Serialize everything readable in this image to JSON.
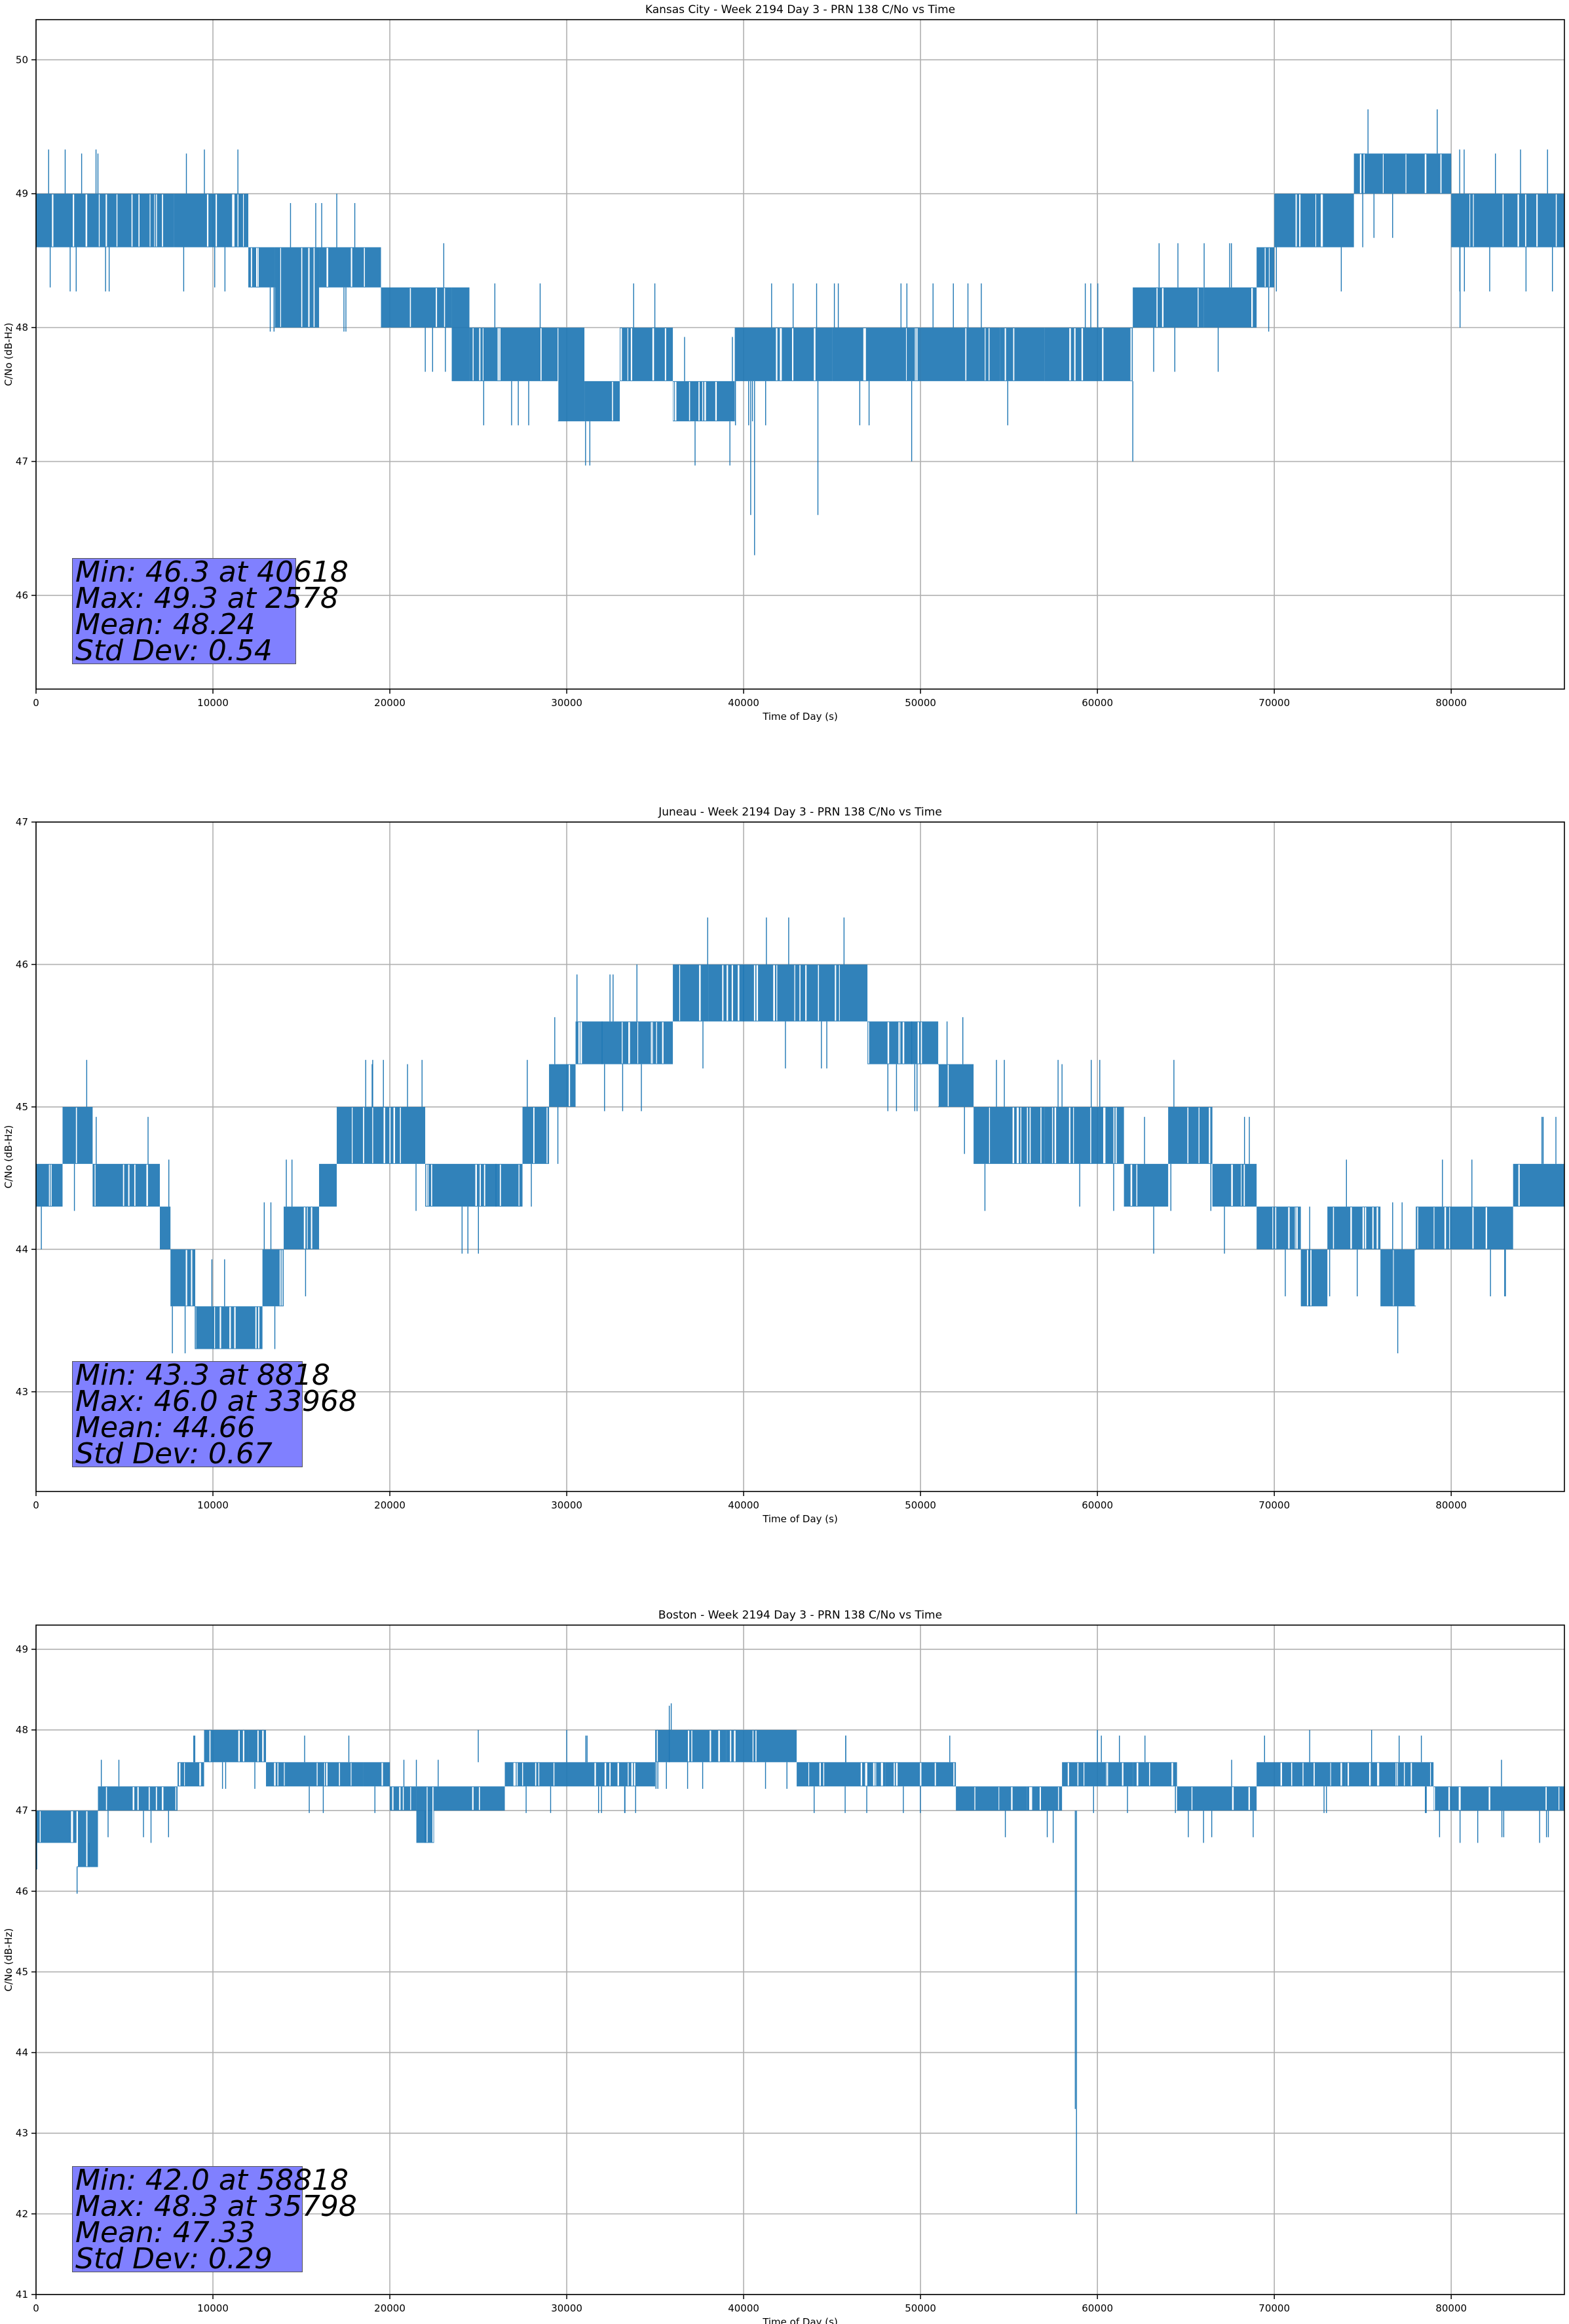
{
  "chart_data": [
    {
      "type": "line",
      "title": "Kansas City - Week 2194 Day 3 - PRN 138 C/No vs Time",
      "xlabel": "Time of Day (s)",
      "ylabel": "C/No (dB-Hz)",
      "xlim": [
        0,
        86400
      ],
      "ylim": [
        45.3,
        50.3
      ],
      "xticks": [
        0,
        10000,
        20000,
        30000,
        40000,
        50000,
        60000,
        70000,
        80000
      ],
      "yticks": [
        46,
        47,
        48,
        49,
        50
      ],
      "grid": true,
      "color": "#1f77b4",
      "stats": {
        "min": "Min: 46.3 at 40618",
        "max": "Max: 49.3 at 2578",
        "mean": "Mean: 48.24",
        "std": "Std Dev: 0.54"
      },
      "bands": [
        [
          0,
          4500,
          48.6,
          49.0
        ],
        [
          4500,
          7800,
          48.6,
          49.0
        ],
        [
          7800,
          12000,
          48.6,
          49.0
        ],
        [
          12000,
          13500,
          48.3,
          48.6
        ],
        [
          13500,
          16000,
          48.0,
          48.6
        ],
        [
          16000,
          19500,
          48.3,
          48.6
        ],
        [
          19500,
          23500,
          48.0,
          48.3
        ],
        [
          23500,
          24500,
          47.6,
          48.3
        ],
        [
          24500,
          29500,
          47.6,
          48.0
        ],
        [
          29500,
          31000,
          47.3,
          48.0
        ],
        [
          31000,
          33000,
          47.3,
          47.6
        ],
        [
          33000,
          36000,
          47.6,
          48.0
        ],
        [
          36000,
          39500,
          47.3,
          47.6
        ],
        [
          39500,
          45000,
          47.6,
          48.0
        ],
        [
          45000,
          50000,
          47.6,
          48.0
        ],
        [
          50000,
          54500,
          47.6,
          48.0
        ],
        [
          54500,
          57000,
          47.6,
          48.0
        ],
        [
          57000,
          62000,
          47.6,
          48.0
        ],
        [
          62000,
          66000,
          48.0,
          48.3
        ],
        [
          66000,
          69000,
          48.0,
          48.3
        ],
        [
          69000,
          70000,
          48.3,
          48.6
        ],
        [
          70000,
          74500,
          48.6,
          49.0
        ],
        [
          74500,
          80000,
          49.0,
          49.3
        ],
        [
          80000,
          86400,
          48.6,
          49.0
        ]
      ],
      "spikes": [
        [
          40618,
          46.3,
          47.6
        ],
        [
          40400,
          46.6,
          47.6
        ],
        [
          44200,
          46.6,
          47.6
        ],
        [
          49500,
          47.0,
          47.6
        ],
        [
          62000,
          47.0,
          47.6
        ],
        [
          800,
          48.3,
          48.6
        ],
        [
          2578,
          49.0,
          49.3
        ],
        [
          3500,
          49.0,
          49.3
        ],
        [
          8500,
          49.0,
          49.3
        ],
        [
          10100,
          48.3,
          48.6
        ],
        [
          17000,
          48.6,
          49.0
        ],
        [
          40500,
          47.3,
          47.6
        ],
        [
          80500,
          48.0,
          48.6
        ],
        [
          75000,
          48.6,
          49.3
        ],
        [
          82500,
          49.0,
          49.3
        ]
      ]
    },
    {
      "type": "line",
      "title": "Juneau - Week 2194 Day 3 - PRN 138 C/No vs Time",
      "xlabel": "Time of Day (s)",
      "ylabel": "C/No (dB-Hz)",
      "xlim": [
        0,
        86400
      ],
      "ylim": [
        42.3,
        47.0
      ],
      "xticks": [
        0,
        10000,
        20000,
        30000,
        40000,
        50000,
        60000,
        70000,
        80000
      ],
      "yticks": [
        43,
        44,
        45,
        46,
        47
      ],
      "grid": true,
      "color": "#1f77b4",
      "stats": {
        "min": "Min: 43.3 at 8818",
        "max": "Max: 46.0 at 33968",
        "mean": "Mean: 44.66",
        "std": "Std Dev: 0.67"
      },
      "bands": [
        [
          0,
          1500,
          44.3,
          44.6
        ],
        [
          1500,
          3200,
          44.6,
          45.0
        ],
        [
          3200,
          7000,
          44.3,
          44.6
        ],
        [
          7000,
          7600,
          44.0,
          44.3
        ],
        [
          7600,
          9000,
          43.6,
          44.0
        ],
        [
          9000,
          12800,
          43.3,
          43.6
        ],
        [
          12800,
          14000,
          43.6,
          44.0
        ],
        [
          14000,
          16000,
          44.0,
          44.3
        ],
        [
          16000,
          17000,
          44.3,
          44.6
        ],
        [
          17000,
          22000,
          44.6,
          45.0
        ],
        [
          22000,
          25000,
          44.3,
          44.6
        ],
        [
          25000,
          27500,
          44.3,
          44.6
        ],
        [
          27500,
          29000,
          44.6,
          45.0
        ],
        [
          29000,
          30500,
          45.0,
          45.3
        ],
        [
          30500,
          36000,
          45.3,
          45.6
        ],
        [
          36000,
          38000,
          45.6,
          46.0
        ],
        [
          38000,
          47000,
          45.6,
          46.0
        ],
        [
          47000,
          51000,
          45.3,
          45.6
        ],
        [
          51000,
          53000,
          45.0,
          45.3
        ],
        [
          53000,
          57000,
          44.6,
          45.0
        ],
        [
          57000,
          61500,
          44.6,
          45.0
        ],
        [
          61500,
          64000,
          44.3,
          44.6
        ],
        [
          64000,
          66500,
          44.6,
          45.0
        ],
        [
          66500,
          69000,
          44.3,
          44.6
        ],
        [
          69000,
          71500,
          44.0,
          44.3
        ],
        [
          71500,
          73000,
          43.6,
          44.0
        ],
        [
          73000,
          76000,
          44.0,
          44.3
        ],
        [
          76000,
          78000,
          43.6,
          44.0
        ],
        [
          78000,
          83500,
          44.0,
          44.3
        ],
        [
          83500,
          86400,
          44.3,
          44.6
        ]
      ],
      "spikes": [
        [
          300,
          44.0,
          44.3
        ],
        [
          9000,
          43.3,
          43.6
        ],
        [
          33968,
          45.6,
          46.0
        ],
        [
          13500,
          43.3,
          43.6
        ],
        [
          19000,
          45.0,
          45.3
        ],
        [
          21000,
          45.0,
          45.3
        ],
        [
          29500,
          44.6,
          45.0
        ],
        [
          32000,
          45.3,
          45.6
        ],
        [
          40000,
          45.6,
          46.0
        ],
        [
          49500,
          45.3,
          45.6
        ],
        [
          51500,
          45.3,
          45.6
        ],
        [
          58000,
          45.0,
          45.3
        ],
        [
          59000,
          44.3,
          44.6
        ],
        [
          72000,
          43.6,
          44.3
        ],
        [
          28000,
          44.3,
          44.6
        ],
        [
          26000,
          44.3,
          44.6
        ]
      ]
    },
    {
      "type": "line",
      "title": "Boston - Week 2194 Day 3 - PRN 138 C/No vs Time",
      "xlabel": "Time of Day (s)",
      "ylabel": "C/No (dB-Hz)",
      "xlim": [
        0,
        86400
      ],
      "ylim": [
        41.0,
        49.3
      ],
      "xticks": [
        0,
        10000,
        20000,
        30000,
        40000,
        50000,
        60000,
        70000,
        80000
      ],
      "yticks": [
        41,
        42,
        43,
        44,
        45,
        46,
        47,
        48,
        49
      ],
      "grid": true,
      "color": "#1f77b4",
      "stats": {
        "min": "Min: 42.0 at 58818",
        "max": "Max: 48.3 at 35798",
        "mean": "Mean: 47.33",
        "std": "Std Dev: 0.29"
      },
      "bands": [
        [
          0,
          2300,
          46.6,
          47.0
        ],
        [
          2300,
          3500,
          46.3,
          47.0
        ],
        [
          3500,
          8000,
          47.0,
          47.3
        ],
        [
          8000,
          9500,
          47.3,
          47.6
        ],
        [
          9500,
          12000,
          47.6,
          48.0
        ],
        [
          12000,
          13000,
          47.6,
          48.0
        ],
        [
          13000,
          18500,
          47.3,
          47.6
        ],
        [
          18500,
          20000,
          47.3,
          47.6
        ],
        [
          20000,
          21500,
          47.0,
          47.3
        ],
        [
          21500,
          22500,
          46.6,
          47.3
        ],
        [
          22500,
          26500,
          47.0,
          47.3
        ],
        [
          26500,
          35000,
          47.3,
          47.6
        ],
        [
          35000,
          39000,
          47.6,
          48.0
        ],
        [
          39000,
          43000,
          47.6,
          48.0
        ],
        [
          43000,
          48000,
          47.3,
          47.6
        ],
        [
          48000,
          52000,
          47.3,
          47.6
        ],
        [
          52000,
          56000,
          47.0,
          47.3
        ],
        [
          56000,
          58000,
          47.0,
          47.3
        ],
        [
          58000,
          62000,
          47.3,
          47.6
        ],
        [
          62000,
          64500,
          47.3,
          47.6
        ],
        [
          64500,
          69000,
          47.0,
          47.3
        ],
        [
          69000,
          74000,
          47.3,
          47.6
        ],
        [
          74000,
          79000,
          47.3,
          47.6
        ],
        [
          79000,
          86400,
          47.0,
          47.3
        ]
      ],
      "spikes": [
        [
          58818,
          42.0,
          47.0
        ],
        [
          58750,
          43.3,
          47.0
        ],
        [
          35798,
          47.6,
          48.3
        ],
        [
          3000,
          46.3,
          46.6
        ],
        [
          57500,
          46.6,
          47.0
        ],
        [
          66000,
          46.6,
          47.0
        ],
        [
          80500,
          46.6,
          47.0
        ],
        [
          81500,
          46.6,
          47.0
        ],
        [
          85000,
          46.6,
          47.0
        ],
        [
          6500,
          46.6,
          47.0
        ],
        [
          22000,
          46.6,
          47.0
        ],
        [
          30000,
          47.6,
          48.0
        ],
        [
          60000,
          47.6,
          48.0
        ],
        [
          75500,
          47.6,
          48.0
        ],
        [
          72000,
          47.6,
          48.0
        ],
        [
          25000,
          47.6,
          48.0
        ]
      ]
    }
  ]
}
